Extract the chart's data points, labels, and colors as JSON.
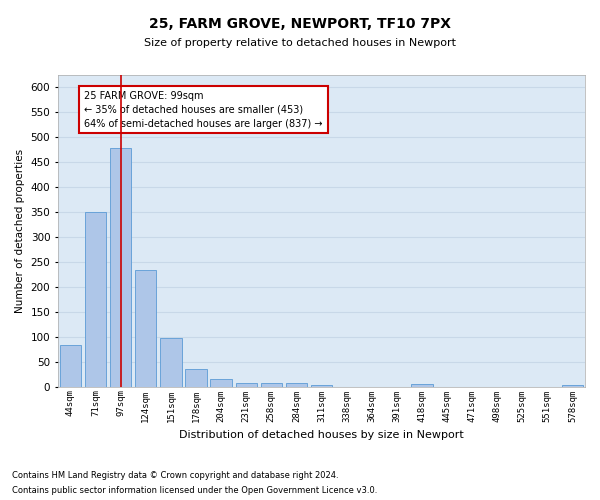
{
  "title": "25, FARM GROVE, NEWPORT, TF10 7PX",
  "subtitle": "Size of property relative to detached houses in Newport",
  "xlabel": "Distribution of detached houses by size in Newport",
  "ylabel": "Number of detached properties",
  "footnote1": "Contains HM Land Registry data © Crown copyright and database right 2024.",
  "footnote2": "Contains public sector information licensed under the Open Government Licence v3.0.",
  "categories": [
    "44sqm",
    "71sqm",
    "97sqm",
    "124sqm",
    "151sqm",
    "178sqm",
    "204sqm",
    "231sqm",
    "258sqm",
    "284sqm",
    "311sqm",
    "338sqm",
    "364sqm",
    "391sqm",
    "418sqm",
    "445sqm",
    "471sqm",
    "498sqm",
    "525sqm",
    "551sqm",
    "578sqm"
  ],
  "values": [
    83,
    350,
    478,
    233,
    97,
    36,
    16,
    7,
    8,
    8,
    3,
    0,
    0,
    0,
    5,
    0,
    0,
    0,
    0,
    0,
    4
  ],
  "bar_color": "#aec6e8",
  "bar_edge_color": "#5b9bd5",
  "grid_color": "#c8d8e8",
  "background_color": "#dce9f5",
  "annotation_box_text": "25 FARM GROVE: 99sqm\n← 35% of detached houses are smaller (453)\n64% of semi-detached houses are larger (837) →",
  "redline_bar_index": 2,
  "redline_color": "#cc0000",
  "annotation_box_color": "#ffffff",
  "annotation_box_edge_color": "#cc0000",
  "ylim": [
    0,
    625
  ],
  "yticks": [
    0,
    50,
    100,
    150,
    200,
    250,
    300,
    350,
    400,
    450,
    500,
    550,
    600
  ]
}
